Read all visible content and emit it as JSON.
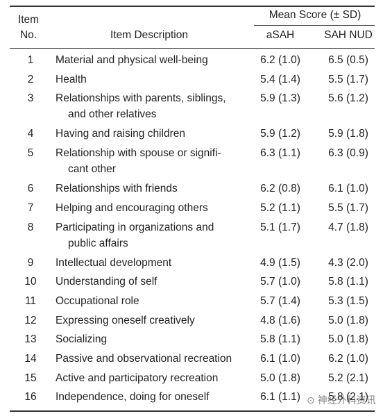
{
  "table": {
    "header": {
      "item_no": [
        "Item",
        "No."
      ],
      "description": "Item Description",
      "group": "Mean Score (± SD)",
      "columns": [
        "aSAH",
        "SAH NUD"
      ]
    },
    "rows": [
      {
        "no": "1",
        "description": [
          "Material and physical well-being"
        ],
        "asah": "6.2 (1.0)",
        "nud": "6.5 (0.5)"
      },
      {
        "no": "2",
        "description": [
          "Health"
        ],
        "asah": "5.4 (1.4)",
        "nud": "5.5 (1.7)"
      },
      {
        "no": "3",
        "description": [
          "Relationships with parents, siblings,",
          "and other relatives"
        ],
        "asah": "5.9 (1.3)",
        "nud": "5.6 (1.2)"
      },
      {
        "no": "4",
        "description": [
          "Having and raising children"
        ],
        "asah": "5.9 (1.2)",
        "nud": "5.9 (1.8)"
      },
      {
        "no": "5",
        "description": [
          "Relationship with spouse or signifi-",
          "cant other"
        ],
        "asah": "6.3 (1.1)",
        "nud": "6.3 (0.9)"
      },
      {
        "no": "6",
        "description": [
          "Relationships with friends"
        ],
        "asah": "6.2 (0.8)",
        "nud": "6.1 (1.0)"
      },
      {
        "no": "7",
        "description": [
          "Helping and encouraging others"
        ],
        "asah": "5.2 (1.1)",
        "nud": "5.5 (1.7)"
      },
      {
        "no": "8",
        "description": [
          "Participating in organizations and",
          "public affairs"
        ],
        "asah": "5.1 (1.7)",
        "nud": "4.7 (1.8)"
      },
      {
        "no": "9",
        "description": [
          "Intellectual development"
        ],
        "asah": "4.9 (1.5)",
        "nud": "4.3 (2.0)"
      },
      {
        "no": "10",
        "description": [
          "Understanding of self"
        ],
        "asah": "5.7 (1.0)",
        "nud": "5.8 (1.1)"
      },
      {
        "no": "11",
        "description": [
          "Occupational role"
        ],
        "asah": "5.7 (1.4)",
        "nud": "5.3 (1.5)"
      },
      {
        "no": "12",
        "description": [
          "Expressing oneself creatively"
        ],
        "asah": "4.8 (1.6)",
        "nud": "5.0 (1.8)"
      },
      {
        "no": "13",
        "description": [
          "Socializing"
        ],
        "asah": "5.8 (1.1)",
        "nud": "5.0 (1.8)"
      },
      {
        "no": "14",
        "description": [
          "Passive and observational recreation"
        ],
        "asah": "6.1 (1.0)",
        "nud": "6.2 (1.0)"
      },
      {
        "no": "15",
        "description": [
          "Active and participatory recreation"
        ],
        "asah": "5.0 (1.8)",
        "nud": "5.2 (2.1)"
      },
      {
        "no": "16",
        "description": [
          "Independence, doing for oneself"
        ],
        "asah": "6.1 (1.1)",
        "nud": "5.8 (2.1)"
      }
    ]
  },
  "watermark": "神经外科资讯"
}
